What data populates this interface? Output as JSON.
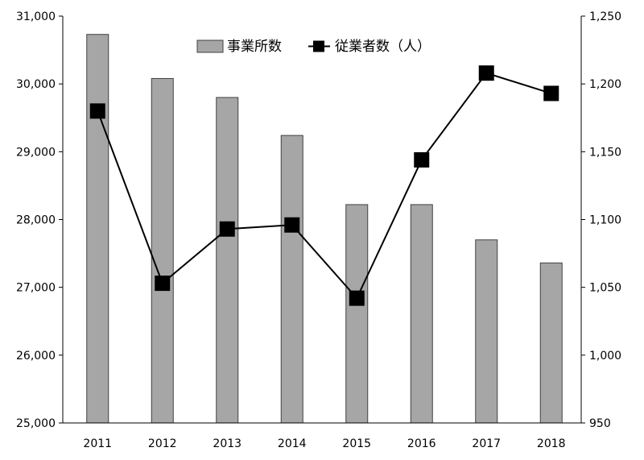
{
  "chart_data": {
    "type": "bar+line",
    "title": "",
    "categories": [
      "2011",
      "2012",
      "2013",
      "2014",
      "2015",
      "2016",
      "2017",
      "2018"
    ],
    "series": [
      {
        "name": "事業所数",
        "type": "bar",
        "axis": "left",
        "color": "#a6a6a6",
        "values": [
          30730,
          30080,
          29800,
          29240,
          28220,
          28220,
          27700,
          27360
        ]
      },
      {
        "name": "従業者数（人）",
        "type": "line",
        "axis": "right",
        "color": "#000000",
        "values": [
          1180,
          1053,
          1093,
          1096,
          1042,
          1144,
          1208,
          1193
        ]
      }
    ],
    "y_left": {
      "min": 25000,
      "max": 31000,
      "ticks": [
        "25,000",
        "26,000",
        "27,000",
        "28,000",
        "29,000",
        "30,000",
        "31,000"
      ]
    },
    "y_right": {
      "min": 950,
      "max": 1250,
      "ticks": [
        "950",
        "1,000",
        "1,050",
        "1,100",
        "1,150",
        "1,200",
        "1,250"
      ]
    },
    "grid": false,
    "legend_position": "top-center"
  }
}
